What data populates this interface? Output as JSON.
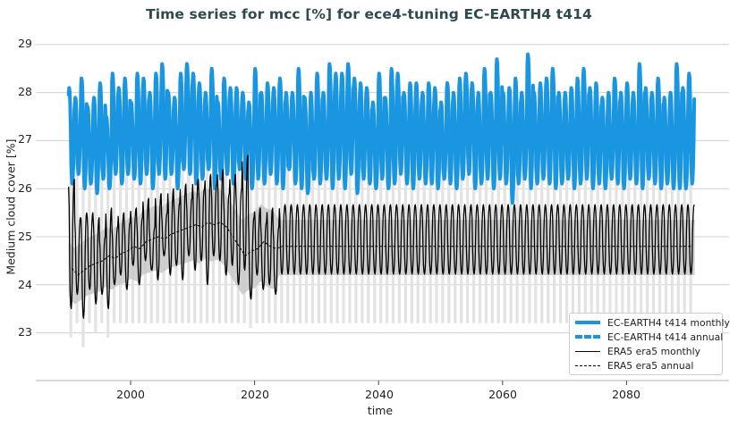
{
  "chart_data": {
    "type": "line",
    "title": "Time series for mcc [%] for ece4-tuning EC-EARTH4 t414",
    "xlabel": "time",
    "ylabel": "Medium cloud cover [%]",
    "xlim": [
      1985,
      2096
    ],
    "ylim": [
      22.1,
      29.4
    ],
    "xticks": [
      2000,
      2020,
      2040,
      2060,
      2080
    ],
    "yticks": [
      23,
      24,
      25,
      26,
      27,
      28,
      29
    ],
    "grid": "horizontal",
    "legend_position": "lower right",
    "series": [
      {
        "name": "EC-EARTH4 t414 monthly",
        "style": "solid-thick",
        "color": "#1a96e0",
        "x_start": 1990,
        "x_end": 2091,
        "annual_peaks": [
          28.1,
          27.9,
          28.3,
          27.7,
          27.9,
          28.2,
          27.5,
          28.4,
          28.1,
          28.3,
          27.8,
          28.4,
          28.3,
          28.0,
          28.4,
          28.6,
          28.0,
          27.9,
          28.4,
          28.6,
          28.4,
          28.2,
          28.0,
          28.5,
          27.8,
          28.3,
          28.1,
          28.1,
          28.0,
          27.8,
          28.5,
          28.0,
          28.2,
          28.1,
          28.3,
          28.0,
          28.0,
          28.5,
          27.9,
          28.0,
          28.4,
          28.0,
          28.6,
          28.4,
          28.4,
          28.6,
          28.3,
          28.2,
          28.1,
          27.8,
          28.4,
          27.9,
          28.5,
          28.4,
          28.0,
          28.2,
          28.2,
          28.0,
          28.2,
          28.1,
          27.8,
          28.2,
          28.0,
          28.3,
          28.4,
          28.2,
          28.0,
          28.5,
          28.0,
          28.7,
          28.0,
          28.1,
          28.3,
          28.0,
          28.8,
          28.0,
          28.2,
          28.3,
          28.5,
          28.0,
          28.0,
          28.1,
          28.3,
          28.5,
          28.1,
          28.2,
          27.9,
          28.0,
          28.3,
          28.0,
          28.2,
          28.0,
          28.6,
          28.1,
          28.0,
          28.3,
          27.9,
          28.0,
          28.6,
          28.1,
          28.4,
          27.9
        ],
        "annual_troughs": [
          26.0,
          26.1,
          26.3,
          26.0,
          26.1,
          25.9,
          26.2,
          26.0,
          26.3,
          26.1,
          26.3,
          26.2,
          26.1,
          26.3,
          26.0,
          26.3,
          26.2,
          26.3,
          26.0,
          26.4,
          26.3,
          26.1,
          26.2,
          26.4,
          26.0,
          26.2,
          26.3,
          26.1,
          26.4,
          26.2,
          26.0,
          26.2,
          26.1,
          26.3,
          26.1,
          26.0,
          26.4,
          26.1,
          26.0,
          25.9,
          26.2,
          26.1,
          26.2,
          26.0,
          26.2,
          26.0,
          26.3,
          25.9,
          26.2,
          26.1,
          26.0,
          26.2,
          26.0,
          26.1,
          26.3,
          26.1,
          26.0,
          26.2,
          26.1,
          26.1,
          26.0,
          26.2,
          26.1,
          26.0,
          26.2,
          26.3,
          26.0,
          26.1,
          26.2,
          26.0,
          26.2,
          26.1,
          25.7,
          26.1,
          26.2,
          26.0,
          26.1,
          26.2,
          26.1,
          26.0,
          26.1,
          26.2,
          26.0,
          26.1,
          26.2,
          26.0,
          26.1,
          26.0,
          26.2,
          26.1,
          26.0,
          26.2,
          26.1,
          26.0,
          26.2,
          26.1,
          26.0,
          26.1,
          26.0,
          26.0,
          26.0,
          26.1
        ]
      },
      {
        "name": "EC-EARTH4 t414 annual",
        "style": "dashed-thick",
        "color": "#1a96e0",
        "note": "hidden beneath monthly series"
      },
      {
        "name": "ERA5 era5 monthly",
        "style": "solid",
        "color": "#000000",
        "x_start": 1990,
        "x_end": 2091,
        "observed_end": 2024,
        "annual_peaks": [
          26.2,
          25.4,
          25.5,
          25.5,
          25.4,
          25.0,
          25.6,
          25.2,
          25.5,
          25.3,
          25.6,
          25.4,
          25.8,
          25.2,
          25.9,
          25.5,
          26.0,
          25.7,
          26.1,
          25.8,
          26.2,
          26.0,
          26.3,
          26.1,
          26.4,
          25.9,
          26.3,
          26.0,
          26.7,
          25.4,
          25.6,
          25.3,
          25.6,
          25.2
        ],
        "annual_troughs": [
          23.5,
          23.8,
          23.3,
          23.9,
          23.6,
          23.8,
          23.5,
          24.0,
          24.2,
          23.9,
          24.4,
          24.0,
          24.5,
          24.3,
          24.1,
          24.6,
          24.2,
          24.4,
          24.1,
          24.6,
          24.3,
          24.5,
          24.0,
          24.6,
          24.5,
          24.2,
          24.4,
          24.0,
          24.3,
          23.7,
          24.2,
          23.9,
          24.0,
          23.8
        ],
        "climatology_peak": 25.67,
        "climatology_trough": 24.22
      },
      {
        "name": "ERA5 era5 annual",
        "style": "dashed",
        "color": "#000000",
        "values": [
          24.35,
          24.2,
          24.3,
          24.4,
          24.45,
          24.5,
          24.6,
          24.55,
          24.65,
          24.7,
          24.8,
          24.75,
          24.9,
          24.95,
          25.0,
          24.95,
          25.05,
          25.1,
          25.15,
          25.2,
          25.25,
          25.2,
          25.3,
          25.25,
          25.3,
          25.2,
          25.0,
          24.8,
          24.6,
          24.7,
          24.75,
          24.9,
          24.8,
          24.75
        ],
        "climatology": 24.8
      }
    ],
    "bands": [
      {
        "name": "ERA5 annual spread",
        "color": "#c8c8c8",
        "lower_start": 24.0,
        "upper_start": 25.0,
        "lower_end": 24.15,
        "upper_end": 25.3
      },
      {
        "name": "ERA5 monthly spread",
        "color": "#e3e3e3",
        "lower": 23.2,
        "upper": 26.6
      }
    ]
  },
  "legend": {
    "items": [
      {
        "label": "EC-EARTH4 t414 monthly"
      },
      {
        "label": "EC-EARTH4 t414 annual"
      },
      {
        "label": "ERA5 era5 monthly"
      },
      {
        "label": "ERA5 era5 annual"
      }
    ]
  },
  "axes": {
    "ytick_labels": [
      "29",
      "28",
      "27",
      "26",
      "25",
      "24",
      "23"
    ],
    "xtick_labels": [
      "2000",
      "2020",
      "2040",
      "2060",
      "2080"
    ]
  },
  "colors": {
    "model": "#1a96e0",
    "obs": "#000000",
    "grid": "#d0d0d0",
    "title": "#2f4a4f"
  }
}
